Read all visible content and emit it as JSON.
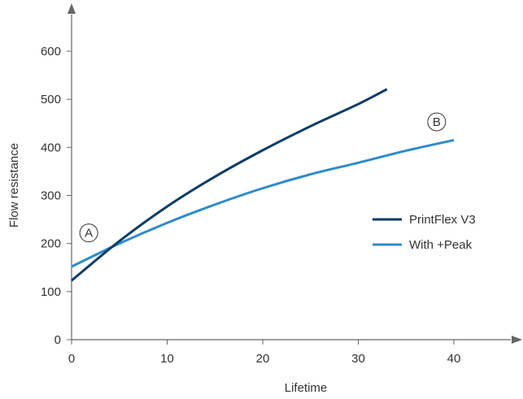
{
  "chart_data": {
    "type": "line",
    "title": "",
    "xlabel": "Lifetime",
    "ylabel": "Flow resistance",
    "xlim": [
      0,
      45
    ],
    "ylim": [
      0,
      650
    ],
    "x_ticks": [
      0,
      10,
      20,
      30,
      40
    ],
    "y_ticks": [
      0,
      100,
      200,
      300,
      400,
      500,
      600
    ],
    "grid": false,
    "legend_position": "right",
    "series": [
      {
        "name": "PrintFlex V3",
        "color": "#0d3d66",
        "x": [
          0,
          5,
          10,
          15,
          20,
          25,
          30,
          33
        ],
        "y": [
          123,
          205,
          277,
          339,
          394,
          444,
          490,
          521
        ]
      },
      {
        "name": "With +Peak",
        "color": "#2f8bcb",
        "x": [
          0,
          5,
          10,
          15,
          20,
          25,
          30,
          35,
          40
        ],
        "y": [
          152,
          200,
          243,
          281,
          315,
          344,
          368,
          393,
          415
        ]
      }
    ],
    "annotations": [
      {
        "label": "A",
        "x": 1.8,
        "y": 222
      },
      {
        "label": "B",
        "x": 38.2,
        "y": 453
      }
    ]
  }
}
